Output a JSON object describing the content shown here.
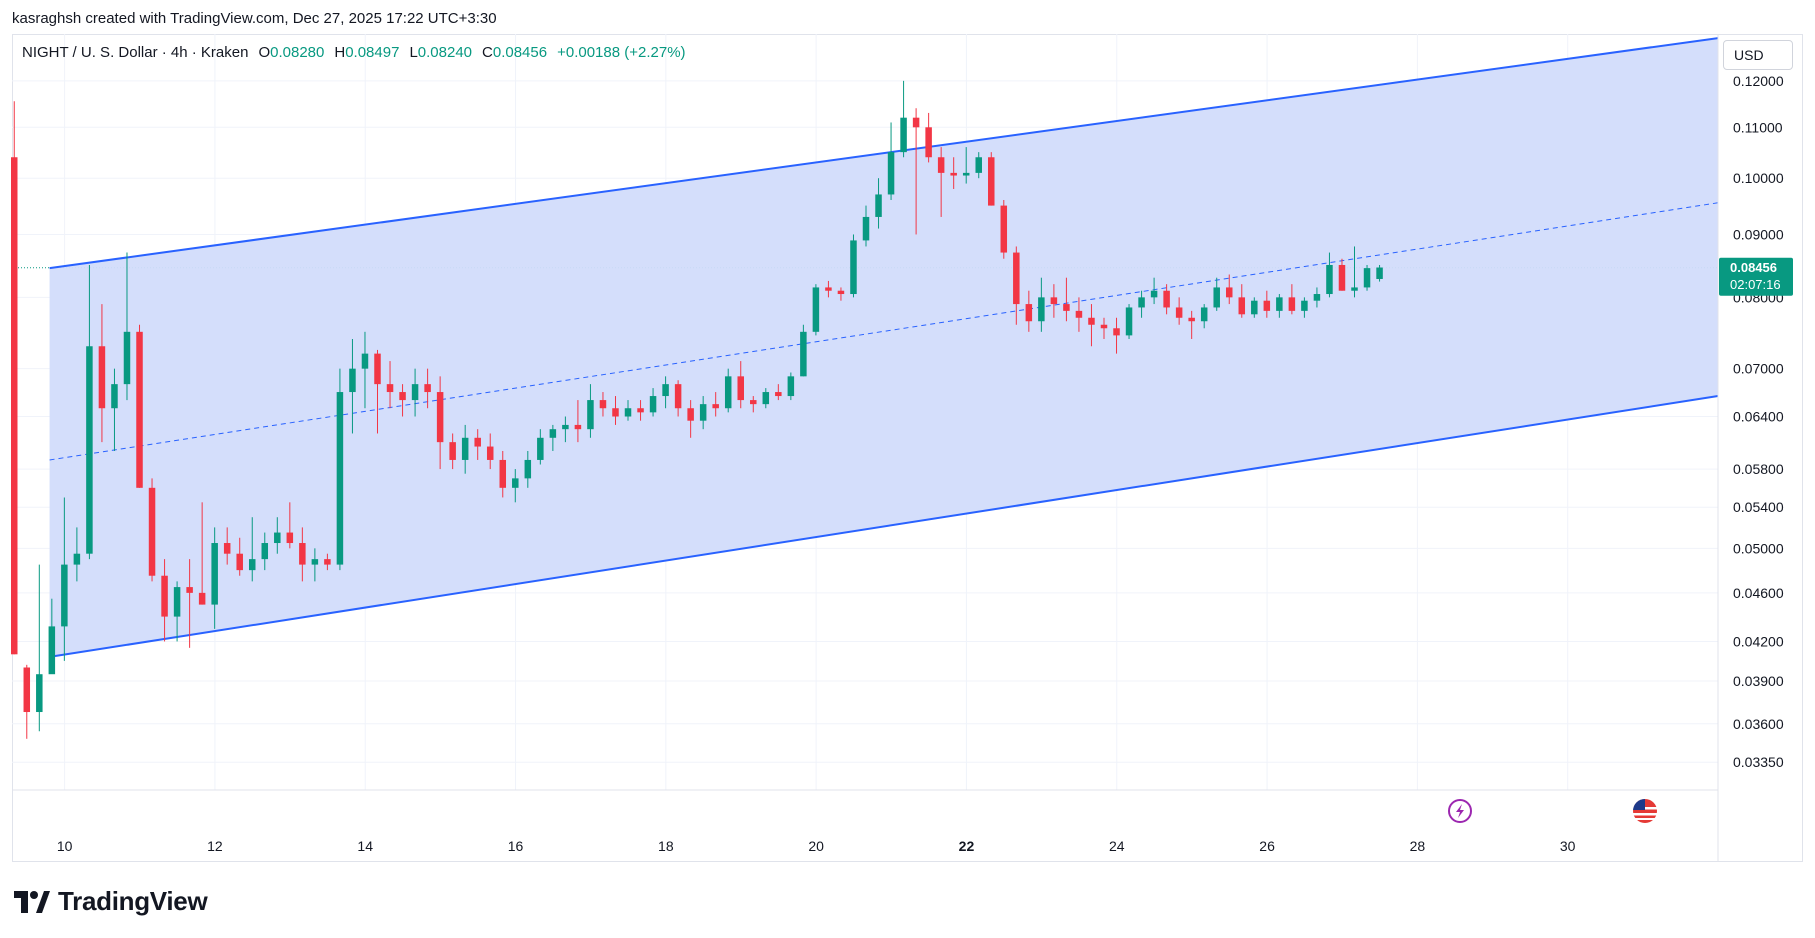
{
  "header": {
    "credit": "kasraghsh created with TradingView.com, Dec 27, 2025 17:22 UTC+3:30"
  },
  "legend": {
    "symbol": "NIGHT / U. S. Dollar · 4h · Kraken",
    "open_label": "O",
    "open": "0.08280",
    "high_label": "H",
    "high": "0.08497",
    "low_label": "L",
    "low": "0.08240",
    "close_label": "C",
    "close": "0.08456",
    "change": "+0.00188 (+2.27%)"
  },
  "price_axis": {
    "currency": "USD",
    "last_price": "0.08456",
    "countdown": "02:07:16"
  },
  "brand": {
    "name": "TradingView"
  },
  "colors": {
    "up": "#089981",
    "down": "#f23645",
    "channel_line": "#2962ff",
    "channel_fill": "#d2dcfb",
    "price_line": "#089981",
    "grid": "#f0f3fa"
  },
  "event_icons": [
    "lightning-icon",
    "us-flag-icon"
  ],
  "chart_data": {
    "type": "candlestick",
    "title": "NIGHT / U. S. Dollar · 4h · Kraken",
    "scale": "log",
    "x_unit": "December 2025 (day of month)",
    "xlim": [
      9.3,
      32.0
    ],
    "ylim": [
      0.0318,
      0.131
    ],
    "x_ticks": [
      "10",
      "12",
      "14",
      "16",
      "18",
      "20",
      "22",
      "24",
      "26",
      "28",
      "30"
    ],
    "x_tick_values": [
      10,
      12,
      14,
      16,
      18,
      20,
      22,
      24,
      26,
      28,
      30
    ],
    "y_ticks": [
      "0.12000",
      "0.11000",
      "0.10000",
      "0.09000",
      "0.08000",
      "0.07000",
      "0.06400",
      "0.05800",
      "0.05400",
      "0.05000",
      "0.04600",
      "0.04200",
      "0.03900",
      "0.03600",
      "0.03350"
    ],
    "y_tick_values": [
      0.12,
      0.11,
      0.1,
      0.09,
      0.08,
      0.07,
      0.064,
      0.058,
      0.054,
      0.05,
      0.046,
      0.042,
      0.039,
      0.036,
      0.0335
    ],
    "grid": true,
    "last_price": 0.08456,
    "channel": {
      "upper": [
        [
          9.8,
          0.0845
        ],
        [
          32.0,
          0.13
        ]
      ],
      "middle": [
        [
          9.8,
          0.059
        ],
        [
          32.0,
          0.0955
        ]
      ],
      "lower": [
        [
          9.8,
          0.0408
        ],
        [
          32.0,
          0.0665
        ]
      ]
    },
    "candles_ohlc": [
      [
        0.104,
        0.1155,
        0.041,
        0.041
      ],
      [
        0.04,
        0.0402,
        0.035,
        0.0368
      ],
      [
        0.0368,
        0.0485,
        0.0355,
        0.0395
      ],
      [
        0.0395,
        0.0455,
        0.0425,
        0.0432
      ],
      [
        0.0432,
        0.055,
        0.0405,
        0.0485
      ],
      [
        0.0485,
        0.052,
        0.047,
        0.0495
      ],
      [
        0.0495,
        0.085,
        0.049,
        0.073
      ],
      [
        0.073,
        0.079,
        0.061,
        0.065
      ],
      [
        0.065,
        0.07,
        0.06,
        0.068
      ],
      [
        0.068,
        0.087,
        0.066,
        0.075
      ],
      [
        0.075,
        0.076,
        0.056,
        0.056
      ],
      [
        0.056,
        0.057,
        0.047,
        0.0475
      ],
      [
        0.0475,
        0.049,
        0.042,
        0.044
      ],
      [
        0.044,
        0.047,
        0.042,
        0.0465
      ],
      [
        0.0465,
        0.049,
        0.0415,
        0.046
      ],
      [
        0.046,
        0.0545,
        0.045,
        0.045
      ],
      [
        0.045,
        0.052,
        0.043,
        0.0505
      ],
      [
        0.0505,
        0.052,
        0.0485,
        0.0495
      ],
      [
        0.0495,
        0.051,
        0.0475,
        0.048
      ],
      [
        0.048,
        0.053,
        0.047,
        0.049
      ],
      [
        0.049,
        0.0515,
        0.048,
        0.0505
      ],
      [
        0.0505,
        0.053,
        0.0495,
        0.0515
      ],
      [
        0.0515,
        0.0545,
        0.05,
        0.0505
      ],
      [
        0.0505,
        0.052,
        0.047,
        0.0485
      ],
      [
        0.0485,
        0.05,
        0.047,
        0.049
      ],
      [
        0.049,
        0.0495,
        0.048,
        0.0485
      ],
      [
        0.0485,
        0.07,
        0.048,
        0.067
      ],
      [
        0.067,
        0.074,
        0.062,
        0.07
      ],
      [
        0.07,
        0.075,
        0.065,
        0.072
      ],
      [
        0.072,
        0.0725,
        0.062,
        0.068
      ],
      [
        0.068,
        0.071,
        0.065,
        0.067
      ],
      [
        0.067,
        0.068,
        0.064,
        0.066
      ],
      [
        0.066,
        0.07,
        0.064,
        0.068
      ],
      [
        0.068,
        0.07,
        0.065,
        0.067
      ],
      [
        0.067,
        0.069,
        0.058,
        0.061
      ],
      [
        0.061,
        0.062,
        0.058,
        0.059
      ],
      [
        0.059,
        0.063,
        0.0575,
        0.0615
      ],
      [
        0.0615,
        0.0625,
        0.059,
        0.0605
      ],
      [
        0.0605,
        0.062,
        0.058,
        0.059
      ],
      [
        0.059,
        0.06,
        0.055,
        0.056
      ],
      [
        0.056,
        0.058,
        0.0545,
        0.057
      ],
      [
        0.057,
        0.06,
        0.056,
        0.059
      ],
      [
        0.059,
        0.0625,
        0.0585,
        0.0615
      ],
      [
        0.0615,
        0.063,
        0.06,
        0.0625
      ],
      [
        0.0625,
        0.064,
        0.061,
        0.063
      ],
      [
        0.063,
        0.066,
        0.061,
        0.0625
      ],
      [
        0.0625,
        0.068,
        0.0615,
        0.066
      ],
      [
        0.066,
        0.067,
        0.064,
        0.065
      ],
      [
        0.065,
        0.0665,
        0.063,
        0.064
      ],
      [
        0.064,
        0.066,
        0.0635,
        0.065
      ],
      [
        0.065,
        0.066,
        0.0635,
        0.0645
      ],
      [
        0.0645,
        0.0675,
        0.064,
        0.0665
      ],
      [
        0.0665,
        0.069,
        0.065,
        0.068
      ],
      [
        0.068,
        0.0685,
        0.064,
        0.065
      ],
      [
        0.065,
        0.066,
        0.0615,
        0.0635
      ],
      [
        0.0635,
        0.0665,
        0.0625,
        0.0655
      ],
      [
        0.0655,
        0.067,
        0.064,
        0.065
      ],
      [
        0.065,
        0.07,
        0.0645,
        0.069
      ],
      [
        0.069,
        0.071,
        0.065,
        0.066
      ],
      [
        0.066,
        0.0665,
        0.0645,
        0.0655
      ],
      [
        0.0655,
        0.0675,
        0.065,
        0.067
      ],
      [
        0.067,
        0.068,
        0.066,
        0.0665
      ],
      [
        0.0665,
        0.0695,
        0.066,
        0.069
      ],
      [
        0.069,
        0.076,
        0.069,
        0.075
      ],
      [
        0.075,
        0.082,
        0.0745,
        0.0815
      ],
      [
        0.0815,
        0.0825,
        0.08,
        0.081
      ],
      [
        0.081,
        0.0815,
        0.0795,
        0.0805
      ],
      [
        0.0805,
        0.09,
        0.08,
        0.089
      ],
      [
        0.089,
        0.095,
        0.088,
        0.093
      ],
      [
        0.093,
        0.1,
        0.091,
        0.097
      ],
      [
        0.097,
        0.111,
        0.096,
        0.105
      ],
      [
        0.105,
        0.12,
        0.104,
        0.112
      ],
      [
        0.112,
        0.114,
        0.09,
        0.11
      ],
      [
        0.11,
        0.113,
        0.103,
        0.104
      ],
      [
        0.104,
        0.106,
        0.093,
        0.101
      ],
      [
        0.101,
        0.104,
        0.098,
        0.1005
      ],
      [
        0.1005,
        0.106,
        0.099,
        0.101
      ],
      [
        0.101,
        0.105,
        0.1,
        0.104
      ],
      [
        0.104,
        0.105,
        0.095,
        0.095
      ],
      [
        0.095,
        0.096,
        0.086,
        0.087
      ],
      [
        0.087,
        0.088,
        0.076,
        0.079
      ],
      [
        0.079,
        0.081,
        0.075,
        0.0765
      ],
      [
        0.0765,
        0.083,
        0.075,
        0.08
      ],
      [
        0.08,
        0.082,
        0.077,
        0.079
      ],
      [
        0.079,
        0.083,
        0.0765,
        0.078
      ],
      [
        0.078,
        0.08,
        0.075,
        0.077
      ],
      [
        0.077,
        0.079,
        0.073,
        0.076
      ],
      [
        0.076,
        0.077,
        0.074,
        0.0755
      ],
      [
        0.0755,
        0.077,
        0.072,
        0.0745
      ],
      [
        0.0745,
        0.079,
        0.074,
        0.0785
      ],
      [
        0.0785,
        0.081,
        0.077,
        0.08
      ],
      [
        0.08,
        0.083,
        0.079,
        0.081
      ],
      [
        0.081,
        0.082,
        0.0775,
        0.0785
      ],
      [
        0.0785,
        0.08,
        0.076,
        0.077
      ],
      [
        0.077,
        0.078,
        0.074,
        0.0765
      ],
      [
        0.0765,
        0.079,
        0.0755,
        0.0785
      ],
      [
        0.0785,
        0.083,
        0.078,
        0.0815
      ],
      [
        0.0815,
        0.0835,
        0.079,
        0.08
      ],
      [
        0.08,
        0.082,
        0.077,
        0.0775
      ],
      [
        0.0775,
        0.08,
        0.077,
        0.0795
      ],
      [
        0.0795,
        0.081,
        0.077,
        0.078
      ],
      [
        0.078,
        0.0805,
        0.077,
        0.08
      ],
      [
        0.08,
        0.082,
        0.0775,
        0.078
      ],
      [
        0.078,
        0.08,
        0.077,
        0.0795
      ],
      [
        0.0795,
        0.0815,
        0.0785,
        0.0805
      ],
      [
        0.0805,
        0.087,
        0.08,
        0.085
      ],
      [
        0.085,
        0.086,
        0.081,
        0.081
      ],
      [
        0.081,
        0.088,
        0.08,
        0.0815
      ],
      [
        0.0815,
        0.085,
        0.081,
        0.0845
      ],
      [
        0.0828,
        0.085,
        0.0824,
        0.0846
      ]
    ]
  }
}
